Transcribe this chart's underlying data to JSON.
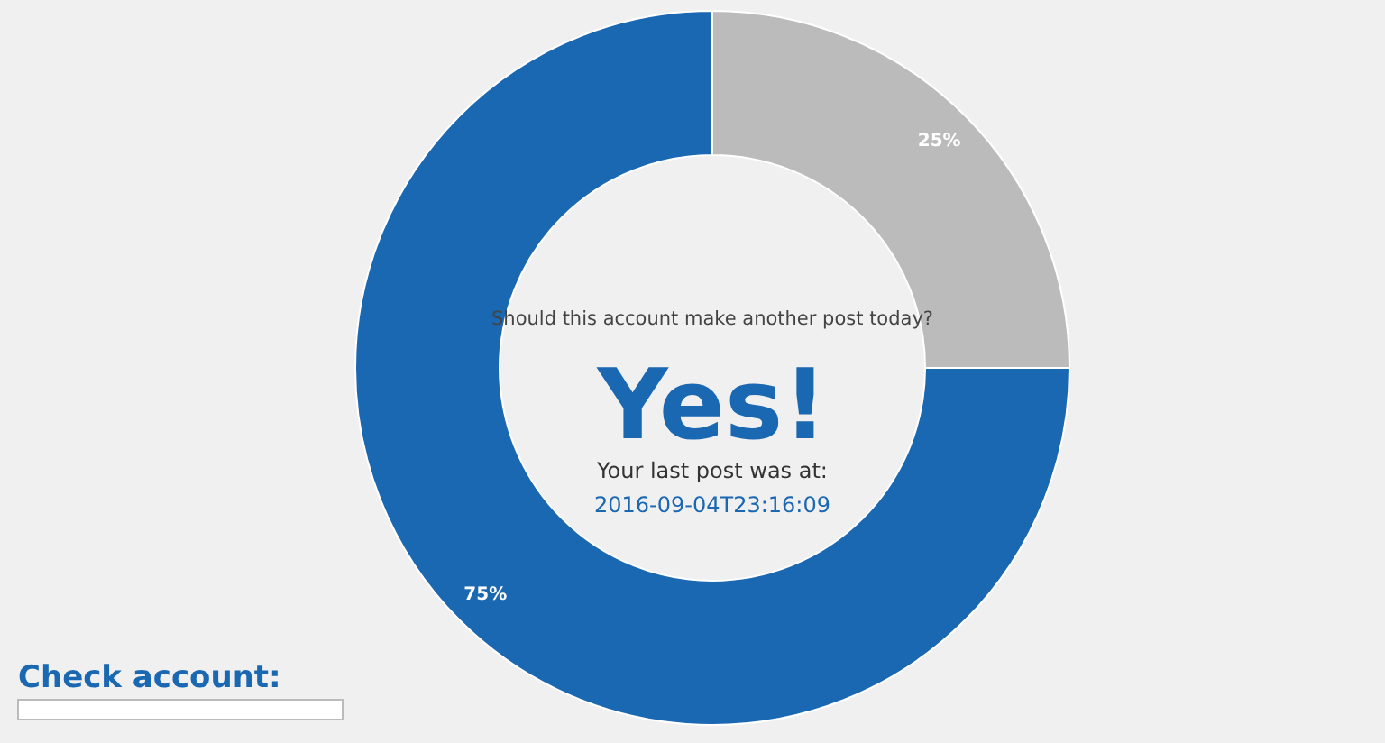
{
  "chart_data": {
    "type": "donut",
    "categories": [
      null,
      null
    ],
    "values": [
      25,
      75
    ],
    "colors": [
      "#bbbbbb",
      "#1a67b2"
    ],
    "value_labels": [
      "25%",
      "75%"
    ],
    "annotations": [
      "Should this account make another post today?",
      "Yes!",
      "Your last post was at:",
      "2016-09-04T23:16:09",
      "Check account:"
    ]
  }
}
